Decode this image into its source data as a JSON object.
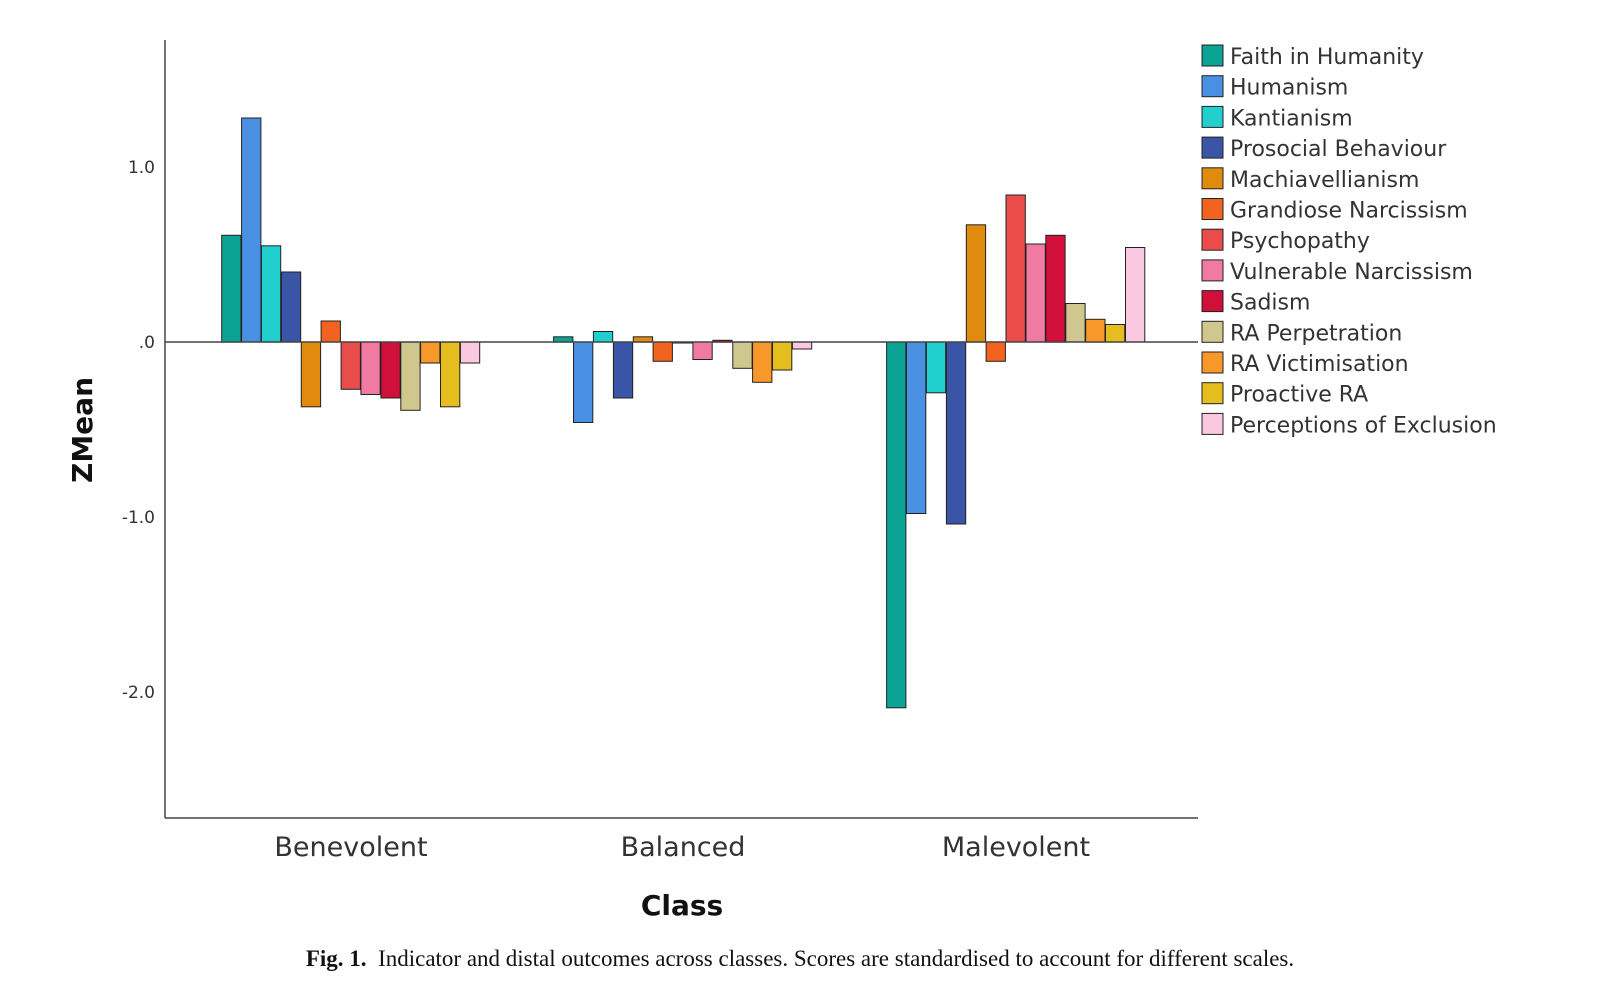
{
  "chart_data": {
    "type": "bar",
    "title": "",
    "xlabel": "Class",
    "ylabel": "ZMean",
    "categories": [
      "Benevolent",
      "Balanced",
      "Malevolent"
    ],
    "ylim": [
      -2.7,
      1.75
    ],
    "yticks": [
      1.0,
      0.0,
      -1.0,
      -2.0
    ],
    "ytick_labels": [
      "1.0",
      ".0",
      "-1.0",
      "-2.0"
    ],
    "legend_position": "top-right",
    "grid": false,
    "series": [
      {
        "name": "Faith in Humanity",
        "color": "#0aa394",
        "values": [
          0.61,
          0.03,
          -2.09
        ]
      },
      {
        "name": "Humanism",
        "color": "#4a90e2",
        "values": [
          1.28,
          -0.46,
          -0.98
        ]
      },
      {
        "name": "Kantianism",
        "color": "#22cfcf",
        "values": [
          0.55,
          0.06,
          -0.29
        ]
      },
      {
        "name": "Prosocial Behaviour",
        "color": "#3a55a6",
        "values": [
          0.4,
          -0.32,
          -1.04
        ]
      },
      {
        "name": "Machiavellianism",
        "color": "#e08a0e",
        "values": [
          -0.37,
          0.03,
          0.67
        ]
      },
      {
        "name": "Grandiose Narcissism",
        "color": "#f2631f",
        "values": [
          0.12,
          -0.11,
          -0.11
        ]
      },
      {
        "name": "Psychopathy",
        "color": "#ea4c4c",
        "values": [
          -0.27,
          0.0,
          0.84
        ]
      },
      {
        "name": "Vulnerable Narcissism",
        "color": "#f07aa1",
        "values": [
          -0.3,
          -0.1,
          0.56
        ]
      },
      {
        "name": "Sadism",
        "color": "#d0103a",
        "values": [
          -0.32,
          0.01,
          0.61
        ]
      },
      {
        "name": "RA Perpetration",
        "color": "#cfc78e",
        "values": [
          -0.39,
          -0.15,
          0.22
        ]
      },
      {
        "name": "RA Victimisation",
        "color": "#f8982a",
        "values": [
          -0.12,
          -0.23,
          0.13
        ]
      },
      {
        "name": "Proactive RA",
        "color": "#e5bd1e",
        "values": [
          -0.37,
          -0.16,
          0.1
        ]
      },
      {
        "name": "Perceptions of Exclusion",
        "color": "#fac8e0",
        "values": [
          -0.12,
          -0.04,
          0.54
        ]
      }
    ]
  },
  "caption": {
    "label": "Fig. 1.",
    "text": "Indicator and distal outcomes across classes. Scores are standardised to account for different scales."
  }
}
